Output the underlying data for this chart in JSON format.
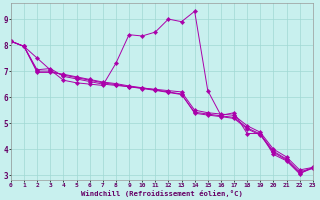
{
  "bg_color": "#c8f0ee",
  "grid_color": "#a0d8d4",
  "line_color": "#aa00aa",
  "xlabel": "Windchill (Refroidissement éolien,°C)",
  "xlim": [
    0,
    23
  ],
  "ylim": [
    2.8,
    9.6
  ],
  "yticks": [
    3,
    4,
    5,
    6,
    7,
    8,
    9
  ],
  "xticks": [
    0,
    1,
    2,
    3,
    4,
    5,
    6,
    7,
    8,
    9,
    10,
    11,
    12,
    13,
    14,
    15,
    16,
    17,
    18,
    19,
    20,
    21,
    22,
    23
  ],
  "xtick_labels": [
    "0",
    "1",
    "2",
    "3",
    "4",
    "5",
    "6",
    "7",
    "8",
    "9",
    "10",
    "11",
    "12",
    "13",
    "14",
    "15",
    "16",
    "17",
    "18",
    "19",
    "20",
    "21",
    "22",
    "23"
  ],
  "line1_x": [
    0,
    1,
    2,
    3,
    4,
    5,
    6,
    7,
    8,
    9,
    10,
    11,
    12,
    13,
    14,
    15,
    16,
    17,
    18,
    19,
    20,
    21,
    22,
    23
  ],
  "line1_y": [
    8.15,
    7.95,
    7.5,
    7.05,
    6.65,
    6.55,
    6.5,
    6.45,
    7.3,
    8.4,
    8.35,
    8.5,
    9.0,
    8.9,
    9.3,
    6.25,
    5.3,
    5.4,
    4.6,
    4.6,
    3.8,
    3.55,
    3.05,
    3.3
  ],
  "line2_x": [
    0,
    1,
    2,
    3,
    4,
    5,
    6,
    7,
    8,
    9,
    10,
    11,
    12,
    13,
    14,
    15,
    16,
    17,
    18,
    19,
    20,
    21,
    22,
    23
  ],
  "line2_y": [
    8.15,
    7.95,
    7.05,
    7.1,
    6.8,
    6.7,
    6.6,
    6.5,
    6.45,
    6.4,
    6.35,
    6.3,
    6.25,
    6.2,
    5.5,
    5.4,
    5.35,
    5.3,
    4.9,
    4.65,
    4.0,
    3.7,
    3.2,
    3.3
  ],
  "line3_x": [
    0,
    1,
    2,
    3,
    4,
    5,
    6,
    7,
    8,
    9,
    10,
    11,
    12,
    13,
    14,
    15,
    16,
    17,
    18,
    19,
    20,
    21,
    22,
    23
  ],
  "line3_y": [
    8.15,
    7.95,
    7.0,
    7.0,
    6.85,
    6.75,
    6.65,
    6.55,
    6.48,
    6.4,
    6.33,
    6.26,
    6.18,
    6.1,
    5.42,
    5.35,
    5.28,
    5.22,
    4.82,
    4.58,
    3.92,
    3.62,
    3.12,
    3.28
  ],
  "line4_x": [
    0,
    1,
    2,
    3,
    4,
    5,
    6,
    7,
    8,
    9,
    10,
    11,
    12,
    13,
    14,
    15,
    16,
    17,
    18,
    19,
    20,
    21,
    22,
    23
  ],
  "line4_y": [
    8.15,
    7.95,
    6.95,
    6.95,
    6.88,
    6.78,
    6.68,
    6.58,
    6.52,
    6.43,
    6.36,
    6.28,
    6.2,
    6.12,
    5.38,
    5.31,
    5.25,
    5.18,
    4.78,
    4.54,
    3.88,
    3.58,
    3.08,
    3.26
  ]
}
